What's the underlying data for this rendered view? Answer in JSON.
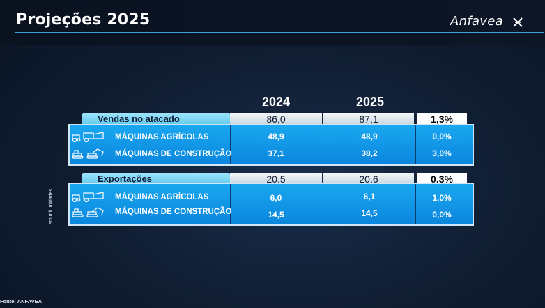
{
  "header": {
    "title": "Projeções 2025",
    "logo": "Anfavea"
  },
  "columns": {
    "y2024": "2024",
    "y2025": "2025"
  },
  "vendas": {
    "label": "Vendas no atacado",
    "v2024": "86,0",
    "v2025": "87,1",
    "pct": "1,3%",
    "rows": [
      {
        "label": "MÁQUINAS AGRÍCOLAS",
        "v2024": "48,9",
        "v2025": "48,9",
        "pct": "0,0%",
        "icon": "tractor-harvester-icon"
      },
      {
        "label": "MÁQUINAS DE CONSTRUÇÃO",
        "v2024": "37,1",
        "v2025": "38,2",
        "pct": "3,0%",
        "icon": "excavator-icon"
      }
    ]
  },
  "exportacoes": {
    "label": "Exportações",
    "v2024": "20,5",
    "v2025": "20,6",
    "pct": "0,3%",
    "rows": [
      {
        "label": "MÁQUINAS AGRÍCOLAS",
        "v2024": "6,0",
        "v2025": "6,1",
        "pct": "1,0%",
        "icon": "tractor-harvester-icon"
      },
      {
        "label": "MÁQUINAS DE CONSTRUÇÃO",
        "v2024": "14,5",
        "v2025": "14,5",
        "pct": "0,0%",
        "icon": "excavator-icon"
      }
    ]
  },
  "side_note": "em mil unidades",
  "source": "Fonte: ANFAVEA",
  "colors": {
    "accent": "#3aa0e0",
    "block": "#0a86dd",
    "header_band": "#7fd6f6"
  }
}
